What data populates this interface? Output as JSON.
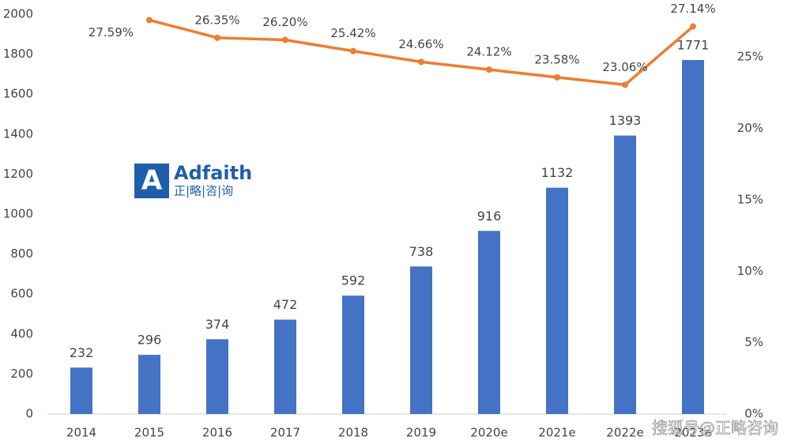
{
  "chart_data": {
    "type": "bar-line",
    "categories": [
      "2014",
      "2015",
      "2016",
      "2017",
      "2018",
      "2019",
      "2020e",
      "2021e",
      "2022e",
      "2023e"
    ],
    "series": [
      {
        "type": "bar",
        "color": "#4472c4",
        "values": [
          232,
          296,
          374,
          472,
          592,
          738,
          916,
          1132,
          1393,
          1771
        ]
      },
      {
        "type": "line",
        "axis": "y2",
        "color": "#ed7d31",
        "values": [
          null,
          27.59,
          26.35,
          26.2,
          25.42,
          24.66,
          24.12,
          23.58,
          23.06,
          27.14
        ],
        "value_labels": [
          null,
          "27.59%",
          "26.35%",
          "26.20%",
          "25.42%",
          "24.66%",
          "24.12%",
          "23.58%",
          "23.06%",
          "27.14%"
        ]
      }
    ],
    "ylim": [
      0,
      2000
    ],
    "yticks": [
      0,
      200,
      400,
      600,
      800,
      1000,
      1200,
      1400,
      1600,
      1800,
      2000
    ],
    "y2lim": [
      0,
      28
    ],
    "y2ticks": [
      {
        "value": 0,
        "label": "0%"
      },
      {
        "value": 5,
        "label": "5%"
      },
      {
        "value": 10,
        "label": "10%"
      },
      {
        "value": 15,
        "label": "15%"
      },
      {
        "value": 20,
        "label": "20%"
      },
      {
        "value": 25,
        "label": "25%"
      }
    ],
    "logo": "Adfaith",
    "logo_subtitle": "正|略|咨|询",
    "watermark": "搜狐号@正略咨询"
  }
}
